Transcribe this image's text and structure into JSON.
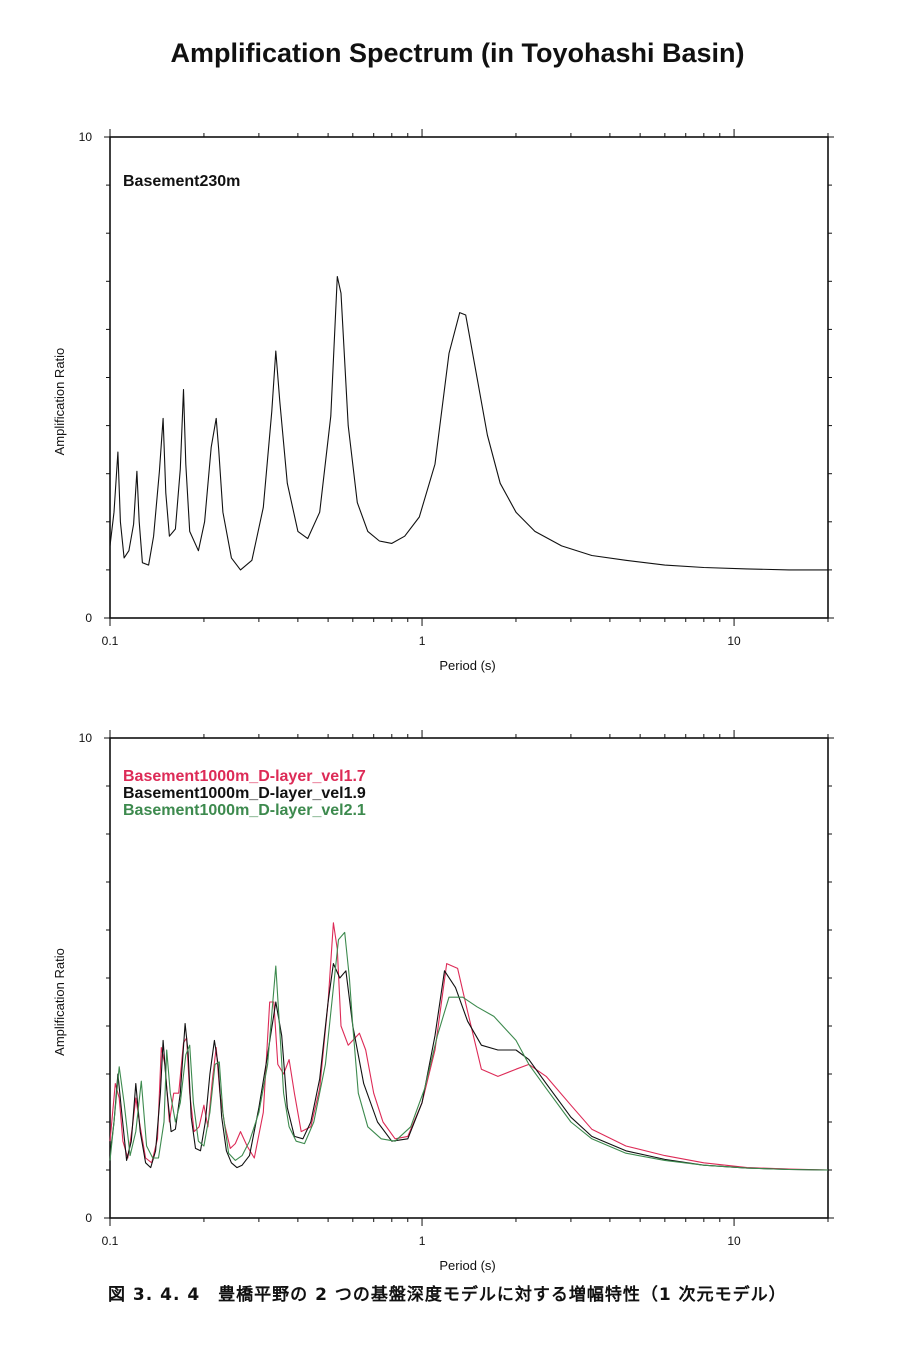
{
  "page": {
    "title": "Amplification Spectrum (in Toyohashi Basin)",
    "caption": "図 3. 4. 4　豊橋平野の 2 つの基盤深度モデルに対する増幅特性（1 次元モデル）"
  },
  "chart_data": [
    {
      "type": "line",
      "title": "",
      "xlabel": "Period (s)",
      "ylabel": "Amplification Ratio",
      "xscale": "log",
      "xlim": [
        0.1,
        20
      ],
      "ylim": [
        0,
        10
      ],
      "xticks": [
        0.1,
        1,
        10
      ],
      "xtick_labels": [
        "0.1",
        "1",
        "10"
      ],
      "yticks": [
        0,
        10
      ],
      "ytick_labels": [
        "0",
        "10"
      ],
      "grid": false,
      "legend_position": "top-left",
      "series": [
        {
          "name": "Basement230m",
          "color": "#111111",
          "x": [
            0.1,
            0.103,
            0.106,
            0.108,
            0.111,
            0.115,
            0.119,
            0.122,
            0.124,
            0.127,
            0.133,
            0.138,
            0.144,
            0.148,
            0.151,
            0.155,
            0.162,
            0.168,
            0.172,
            0.175,
            0.18,
            0.192,
            0.201,
            0.211,
            0.219,
            0.223,
            0.23,
            0.245,
            0.262,
            0.285,
            0.31,
            0.33,
            0.34,
            0.35,
            0.37,
            0.4,
            0.43,
            0.47,
            0.51,
            0.535,
            0.55,
            0.58,
            0.62,
            0.67,
            0.73,
            0.8,
            0.88,
            0.98,
            1.1,
            1.22,
            1.32,
            1.38,
            1.5,
            1.62,
            1.78,
            2.0,
            2.3,
            2.8,
            3.5,
            4.5,
            6.0,
            8.0,
            11.0,
            15.0,
            20.0
          ],
          "y": [
            1.5,
            2.2,
            3.45,
            2.0,
            1.25,
            1.4,
            1.95,
            3.05,
            2.0,
            1.15,
            1.1,
            1.7,
            3.05,
            4.15,
            2.6,
            1.7,
            1.85,
            3.1,
            4.75,
            3.2,
            1.8,
            1.4,
            2.0,
            3.55,
            4.15,
            3.5,
            2.2,
            1.25,
            1.0,
            1.2,
            2.3,
            4.3,
            5.55,
            4.5,
            2.8,
            1.8,
            1.65,
            2.2,
            4.2,
            7.1,
            6.75,
            4.0,
            2.4,
            1.8,
            1.6,
            1.55,
            1.7,
            2.1,
            3.2,
            5.5,
            6.35,
            6.3,
            5.0,
            3.8,
            2.8,
            2.2,
            1.8,
            1.5,
            1.3,
            1.2,
            1.1,
            1.05,
            1.02,
            1.0,
            1.0
          ]
        }
      ]
    },
    {
      "type": "line",
      "title": "",
      "xlabel": "Period (s)",
      "ylabel": "Amplification Ratio",
      "xscale": "log",
      "xlim": [
        0.1,
        20
      ],
      "ylim": [
        0,
        10
      ],
      "xticks": [
        0.1,
        1,
        10
      ],
      "xtick_labels": [
        "0.1",
        "1",
        "10"
      ],
      "yticks": [
        0,
        10
      ],
      "ytick_labels": [
        "0",
        "10"
      ],
      "grid": false,
      "legend_position": "top-left",
      "series": [
        {
          "name": "Basement1000m_D-layer_vel1.7",
          "color": "#dd2b57",
          "x": [
            0.1,
            0.104,
            0.107,
            0.11,
            0.114,
            0.118,
            0.121,
            0.125,
            0.13,
            0.136,
            0.142,
            0.146,
            0.15,
            0.155,
            0.16,
            0.166,
            0.172,
            0.176,
            0.18,
            0.186,
            0.193,
            0.2,
            0.206,
            0.213,
            0.219,
            0.225,
            0.233,
            0.243,
            0.252,
            0.262,
            0.275,
            0.29,
            0.31,
            0.325,
            0.335,
            0.345,
            0.36,
            0.375,
            0.39,
            0.41,
            0.44,
            0.47,
            0.5,
            0.52,
            0.535,
            0.55,
            0.58,
            0.6,
            0.63,
            0.66,
            0.7,
            0.75,
            0.82,
            0.9,
            1.0,
            1.1,
            1.2,
            1.3,
            1.4,
            1.55,
            1.75,
            2.0,
            2.2,
            2.5,
            3.0,
            3.5,
            4.5,
            6.0,
            8.0,
            11.0,
            15.0,
            20.0
          ],
          "y": [
            1.6,
            2.8,
            2.5,
            1.6,
            1.25,
            1.9,
            2.5,
            1.9,
            1.25,
            1.15,
            1.65,
            3.55,
            3.2,
            2.0,
            2.6,
            2.6,
            3.65,
            3.75,
            2.6,
            1.8,
            1.9,
            2.35,
            1.9,
            2.9,
            3.55,
            2.6,
            1.95,
            1.45,
            1.55,
            1.8,
            1.5,
            1.25,
            2.2,
            4.5,
            4.5,
            3.2,
            3.0,
            3.3,
            2.6,
            1.8,
            1.9,
            2.7,
            4.5,
            6.15,
            5.6,
            4.0,
            3.6,
            3.7,
            3.85,
            3.5,
            2.6,
            2.0,
            1.65,
            1.7,
            2.4,
            3.5,
            5.3,
            5.2,
            4.3,
            3.1,
            2.95,
            3.1,
            3.2,
            2.95,
            2.35,
            1.85,
            1.5,
            1.3,
            1.15,
            1.05,
            1.02,
            1.0
          ]
        },
        {
          "name": "Basement1000m_D-layer_vel1.9",
          "color": "#111111",
          "x": [
            0.1,
            0.103,
            0.106,
            0.109,
            0.113,
            0.117,
            0.121,
            0.125,
            0.13,
            0.135,
            0.14,
            0.145,
            0.148,
            0.152,
            0.157,
            0.162,
            0.168,
            0.174,
            0.178,
            0.182,
            0.188,
            0.195,
            0.202,
            0.209,
            0.216,
            0.222,
            0.228,
            0.236,
            0.245,
            0.255,
            0.265,
            0.28,
            0.3,
            0.32,
            0.34,
            0.355,
            0.37,
            0.39,
            0.415,
            0.44,
            0.47,
            0.5,
            0.52,
            0.545,
            0.57,
            0.6,
            0.65,
            0.72,
            0.8,
            0.9,
            1.0,
            1.1,
            1.18,
            1.28,
            1.4,
            1.55,
            1.75,
            2.0,
            2.2,
            2.5,
            3.0,
            3.5,
            4.5,
            6.0,
            8.0,
            11.0,
            15.0,
            20.0
          ],
          "y": [
            1.3,
            2.0,
            3.0,
            2.2,
            1.2,
            1.6,
            2.8,
            1.8,
            1.15,
            1.05,
            1.4,
            2.6,
            3.7,
            2.7,
            1.8,
            1.85,
            2.6,
            4.05,
            3.45,
            2.1,
            1.45,
            1.4,
            2.0,
            3.0,
            3.7,
            3.2,
            2.1,
            1.4,
            1.15,
            1.05,
            1.1,
            1.3,
            2.3,
            3.4,
            4.5,
            3.8,
            2.3,
            1.7,
            1.65,
            2.0,
            2.9,
            4.5,
            5.3,
            5.0,
            5.15,
            4.0,
            2.8,
            2.0,
            1.6,
            1.65,
            2.4,
            3.8,
            5.15,
            4.8,
            4.1,
            3.6,
            3.5,
            3.5,
            3.3,
            2.8,
            2.1,
            1.7,
            1.4,
            1.22,
            1.1,
            1.04,
            1.01,
            1.0
          ]
        },
        {
          "name": "Basement1000m_D-layer_vel2.1",
          "color": "#3d8a4e",
          "x": [
            0.1,
            0.103,
            0.107,
            0.111,
            0.116,
            0.121,
            0.126,
            0.131,
            0.137,
            0.143,
            0.149,
            0.152,
            0.156,
            0.162,
            0.168,
            0.175,
            0.18,
            0.185,
            0.192,
            0.2,
            0.209,
            0.217,
            0.224,
            0.23,
            0.24,
            0.252,
            0.265,
            0.28,
            0.3,
            0.32,
            0.34,
            0.35,
            0.36,
            0.375,
            0.395,
            0.42,
            0.45,
            0.49,
            0.52,
            0.54,
            0.565,
            0.585,
            0.6,
            0.625,
            0.67,
            0.74,
            0.82,
            0.92,
            1.02,
            1.12,
            1.22,
            1.35,
            1.5,
            1.7,
            2.0,
            2.2,
            2.5,
            3.0,
            3.5,
            4.5,
            6.0,
            8.0,
            11.0,
            15.0,
            20.0
          ],
          "y": [
            1.2,
            2.0,
            3.15,
            2.4,
            1.3,
            1.8,
            2.85,
            1.5,
            1.25,
            1.25,
            2.0,
            3.5,
            2.6,
            2.0,
            2.4,
            3.4,
            3.6,
            2.4,
            1.6,
            1.5,
            2.2,
            3.2,
            3.25,
            2.2,
            1.35,
            1.2,
            1.3,
            1.6,
            2.2,
            3.2,
            5.25,
            3.9,
            2.6,
            1.9,
            1.6,
            1.55,
            2.0,
            3.2,
            4.8,
            5.8,
            5.95,
            5.0,
            4.0,
            2.6,
            1.9,
            1.65,
            1.6,
            1.9,
            2.7,
            3.8,
            4.6,
            4.6,
            4.4,
            4.2,
            3.7,
            3.2,
            2.7,
            2.0,
            1.65,
            1.35,
            1.2,
            1.1,
            1.04,
            1.01,
            1.0
          ]
        }
      ]
    }
  ]
}
